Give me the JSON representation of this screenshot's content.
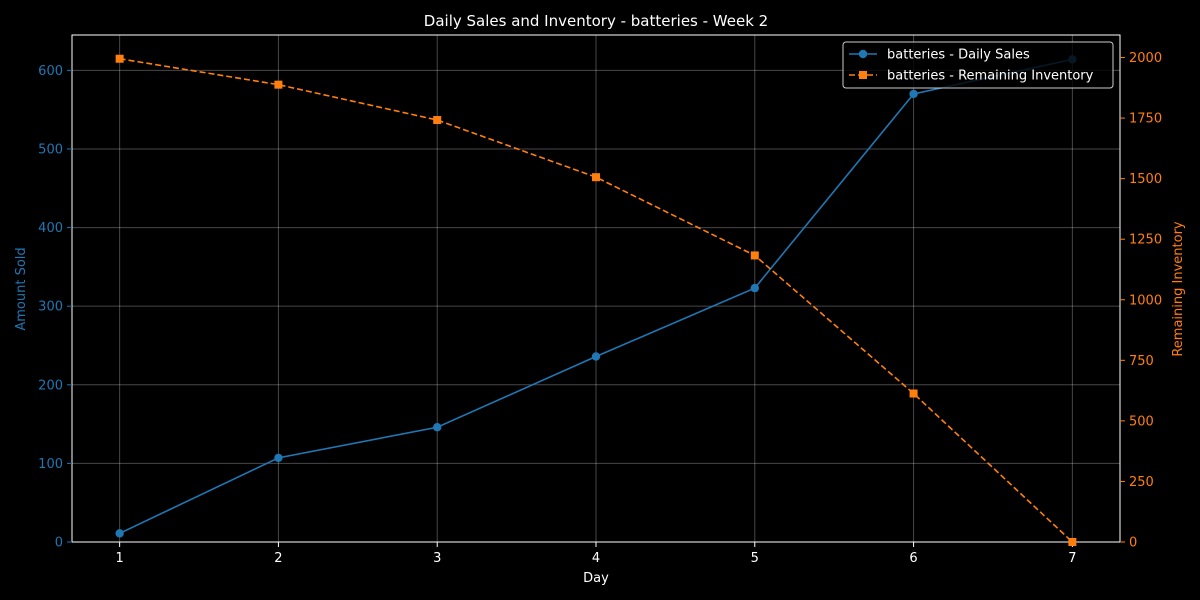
{
  "chart_data": {
    "type": "line",
    "title": "Daily Sales and Inventory - batteries - Week 2",
    "xlabel": "Day",
    "ylabel_left": "Amount Sold",
    "ylabel_right": "Remaining Inventory",
    "x": [
      1,
      2,
      3,
      4,
      5,
      6,
      7
    ],
    "xlim": [
      0.7,
      7.3
    ],
    "ylim_left": [
      0,
      645
    ],
    "ylim_right": [
      0,
      2093
    ],
    "yticks_left": [
      0,
      100,
      200,
      300,
      400,
      500,
      600
    ],
    "yticks_right": [
      0,
      250,
      500,
      750,
      1000,
      1250,
      1500,
      1750,
      2000
    ],
    "grid": true,
    "legend_position": "top-right",
    "series": [
      {
        "name": "batteries - Daily Sales",
        "axis": "left",
        "color": "#1f77b4",
        "marker": "circle",
        "linestyle": "solid",
        "values": [
          11,
          107,
          146,
          236,
          323,
          570,
          614
        ]
      },
      {
        "name": "batteries - Remaining Inventory",
        "axis": "right",
        "color": "#ff7f0e",
        "marker": "square",
        "linestyle": "dashed",
        "values": [
          1995,
          1888,
          1742,
          1506,
          1183,
          613,
          0
        ]
      }
    ]
  }
}
